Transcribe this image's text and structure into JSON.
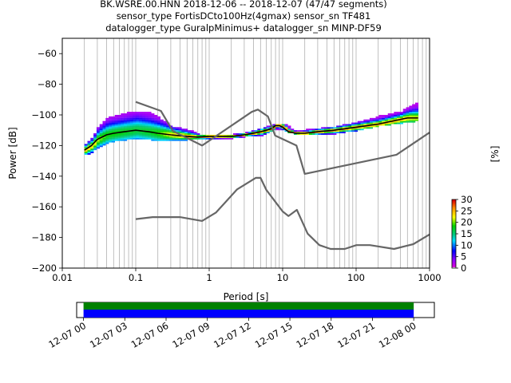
{
  "chart_data": [
    {
      "type": "heatmap",
      "title": "BK.WSRE.00.HNN   2018-12-06 -- 2018-12-07  (47/47 segments)\nsensor_type FortisDCto100Hz(4gmax) sensor_sn TF481\ndatalogger_type GuralpMinimus+ datalogger_sn MINP-DF59",
      "title_lines": [
        "BK.WSRE.00.HNN   2018-12-06 -- 2018-12-07  (47/47 segments)",
        "sensor_type FortisDCto100Hz(4gmax) sensor_sn TF481",
        "datalogger_type GuralpMinimus+ datalogger_sn MINP-DF59"
      ],
      "xlabel": "Period [s]",
      "ylabel": "Power [dB]",
      "xscale": "log",
      "xlim": [
        0.01,
        1000
      ],
      "ylim": [
        -200,
        -50
      ],
      "xticks": [
        0.01,
        0.1,
        1,
        10,
        100,
        1000
      ],
      "xtick_labels": [
        "0.01",
        "0.1",
        "1",
        "10",
        "100",
        "1000"
      ],
      "yticks": [
        -200,
        -180,
        -160,
        -140,
        -120,
        -100,
        -80,
        -60
      ],
      "ytick_labels": [
        "−200",
        "−180",
        "−160",
        "−140",
        "−120",
        "−100",
        "−80",
        "−60"
      ],
      "grid": "x-major-and-minor",
      "colorbar": {
        "label": "[%]",
        "range": [
          0,
          30
        ],
        "ticks": [
          "0",
          "5",
          "10",
          "15",
          "20",
          "25",
          "30"
        ],
        "colormap": "pqlx"
      },
      "series": [
        {
          "name": "",
          "role": "mean-psd",
          "color": "#000000",
          "x": [
            0.02,
            0.025,
            0.03,
            0.04,
            0.05,
            0.07,
            0.1,
            0.15,
            0.2,
            0.3,
            0.5,
            0.7,
            1,
            1.5,
            2,
            3,
            4,
            5,
            6,
            7,
            8,
            9,
            10,
            12,
            15,
            20,
            30,
            50,
            100,
            200,
            500,
            700
          ],
          "y": [
            -123,
            -120,
            -116,
            -113,
            -112,
            -111,
            -110,
            -111,
            -112,
            -113,
            -114,
            -114.5,
            -114,
            -114,
            -114,
            -113,
            -112,
            -111,
            -110,
            -109,
            -107,
            -107,
            -108,
            -111,
            -112,
            -112,
            -111,
            -110,
            -108,
            -106,
            -102,
            -102
          ]
        },
        {
          "name": "",
          "role": "noise-model-high",
          "color": "#666666",
          "x": [
            0.1,
            0.22,
            0.32,
            0.8,
            3.8,
            4.6,
            6.3,
            7.9,
            15.4,
            20,
            354.8,
            1000
          ],
          "y": [
            -91.5,
            -97.4,
            -110.5,
            -120,
            -98,
            -96.5,
            -101,
            -113.5,
            -120,
            -138.5,
            -126,
            -111.5
          ]
        },
        {
          "name": "",
          "role": "noise-model-low",
          "color": "#666666",
          "x": [
            0.1,
            0.17,
            0.4,
            0.8,
            1.24,
            2.4,
            4.3,
            5,
            6,
            10,
            12,
            15.6,
            21.9,
            31.6,
            45,
            70,
            101,
            154,
            328,
            600,
            1000
          ],
          "y": [
            -168,
            -166.7,
            -166.7,
            -169.2,
            -163.7,
            -148.6,
            -141.1,
            -141.1,
            -149,
            -163,
            -166,
            -162,
            -177.5,
            -185,
            -187.5,
            -187.5,
            -185,
            -185,
            -187.5,
            -184.4,
            -178
          ]
        }
      ],
      "histogram_band": [
        {
          "x": 0.02,
          "lo": -126,
          "hi": -119
        },
        {
          "x": 0.025,
          "lo": -124,
          "hi": -115
        },
        {
          "x": 0.03,
          "lo": -121,
          "hi": -108
        },
        {
          "x": 0.04,
          "lo": -118,
          "hi": -102
        },
        {
          "x": 0.05,
          "lo": -117,
          "hi": -101
        },
        {
          "x": 0.07,
          "lo": -116,
          "hi": -99
        },
        {
          "x": 0.1,
          "lo": -116,
          "hi": -98
        },
        {
          "x": 0.15,
          "lo": -116,
          "hi": -99
        },
        {
          "x": 0.2,
          "lo": -117,
          "hi": -102
        },
        {
          "x": 0.3,
          "lo": -117,
          "hi": -108
        },
        {
          "x": 0.5,
          "lo": -116,
          "hi": -110
        },
        {
          "x": 0.7,
          "lo": -116,
          "hi": -113
        },
        {
          "x": 1,
          "lo": -116,
          "hi": -113
        },
        {
          "x": 2,
          "lo": -115,
          "hi": -113
        },
        {
          "x": 3,
          "lo": -114,
          "hi": -112
        },
        {
          "x": 5,
          "lo": -113,
          "hi": -109
        },
        {
          "x": 8,
          "lo": -109,
          "hi": -106
        },
        {
          "x": 10,
          "lo": -110,
          "hi": -106
        },
        {
          "x": 15,
          "lo": -113,
          "hi": -111
        },
        {
          "x": 20,
          "lo": -113,
          "hi": -110
        },
        {
          "x": 50,
          "lo": -112,
          "hi": -108
        },
        {
          "x": 100,
          "lo": -110,
          "hi": -105
        },
        {
          "x": 200,
          "lo": -107,
          "hi": -101
        },
        {
          "x": 400,
          "lo": -105,
          "hi": -98
        },
        {
          "x": 600,
          "lo": -104,
          "hi": -93
        },
        {
          "x": 700,
          "lo": -103,
          "hi": -92
        }
      ]
    },
    {
      "type": "timeline",
      "xlim": [
        "2018-12-06T23:30:00",
        "2018-12-08T01:30:00"
      ],
      "coverage": {
        "start": "2018-12-07T00:00:00",
        "end": "2018-12-08T00:00:00"
      },
      "colors": {
        "top": "#008000",
        "bottom": "#0000ff"
      },
      "xtick_labels": [
        "12-07 00",
        "12-07 03",
        "12-07 06",
        "12-07 09",
        "12-07 12",
        "12-07 15",
        "12-07 18",
        "12-07 21",
        "12-08 00"
      ],
      "xtick_hours": [
        0,
        3,
        6,
        9,
        12,
        15,
        18,
        21,
        24
      ]
    }
  ]
}
